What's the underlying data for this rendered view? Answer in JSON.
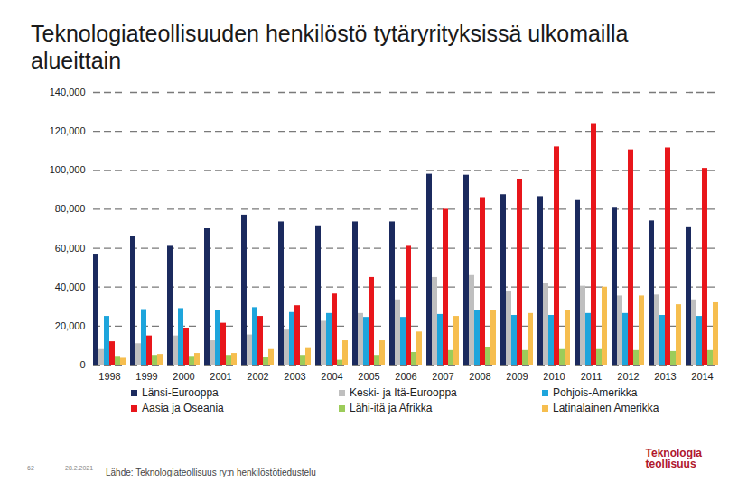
{
  "chart_data": {
    "type": "bar",
    "title": "Teknologiateollisuuden henkilöstö tytäryrityksissä ulkomailla alueittain",
    "categories": [
      1998,
      1999,
      2000,
      2001,
      2002,
      2003,
      2004,
      2005,
      2006,
      2007,
      2008,
      2009,
      2010,
      2011,
      2012,
      2013,
      2014
    ],
    "series": [
      {
        "name": "Länsi-Eurooppa",
        "color": "#1b2a5e",
        "values": [
          57000,
          66000,
          61000,
          70000,
          77000,
          73500,
          71500,
          73500,
          73500,
          98000,
          97500,
          87500,
          86500,
          84500,
          81000,
          74000,
          71000
        ]
      },
      {
        "name": "Keski- ja Itä-Eurooppa",
        "color": "#bfbfbf",
        "values": [
          8000,
          11000,
          15000,
          12500,
          15500,
          18000,
          22500,
          26500,
          33500,
          45000,
          46000,
          38000,
          42000,
          40500,
          35500,
          36000,
          33500
        ]
      },
      {
        "name": "Pohjois-Amerikka",
        "color": "#1ea5dc",
        "values": [
          25000,
          28500,
          29000,
          28000,
          29500,
          27000,
          26500,
          24500,
          24500,
          26000,
          28000,
          25500,
          25500,
          26500,
          26500,
          25500,
          25000
        ]
      },
      {
        "name": "Aasia ja Oseania",
        "color": "#e8161b",
        "values": [
          12000,
          15000,
          19000,
          21500,
          25000,
          30500,
          36500,
          45000,
          61000,
          80000,
          86000,
          95500,
          112000,
          124000,
          110500,
          111500,
          101000
        ]
      },
      {
        "name": "Lähi-itä ja Afrikka",
        "color": "#9ccc5a",
        "values": [
          4500,
          5000,
          4500,
          5000,
          4000,
          5000,
          2500,
          5000,
          6500,
          7500,
          9000,
          7500,
          8000,
          8000,
          7500,
          7000,
          7500
        ]
      },
      {
        "name": "Latinalainen Amerikka",
        "color": "#f6be4f",
        "values": [
          3500,
          5500,
          6000,
          6000,
          8000,
          8500,
          12500,
          12500,
          17000,
          25000,
          28000,
          26500,
          28000,
          40000,
          35500,
          31000,
          32000
        ]
      }
    ],
    "ylim": [
      0,
      140000
    ],
    "yticks": [
      0,
      {
        "value": 20000,
        "label": "20,000"
      },
      {
        "value": 40000,
        "label": "40,000"
      },
      {
        "value": 60000,
        "label": "60,000"
      },
      {
        "value": 80000,
        "label": "80,000"
      },
      {
        "value": 100000,
        "label": "100,000"
      },
      {
        "value": 120000,
        "label": "120,000"
      },
      {
        "value": 140000,
        "label": "140,000"
      }
    ],
    "grid": true,
    "legend": "bottom"
  },
  "footer": {
    "page": "62",
    "date": "28.2.2021",
    "source": "Lähde: Teknologiateollisuus ry:n henkilöstötiedustelu",
    "logo": [
      "Teknologia",
      "teollisuus"
    ]
  }
}
